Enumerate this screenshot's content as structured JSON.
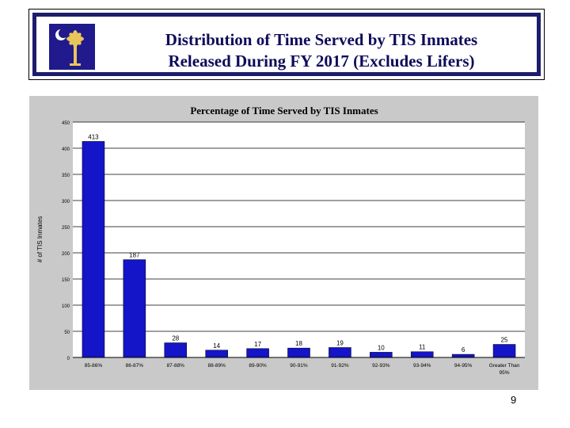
{
  "header": {
    "title_line1": "Distribution of Time Served by TIS Inmates",
    "title_line2": "Released During FY 2017 (Excludes Lifers)"
  },
  "page_number": "9",
  "colors": {
    "bar": "#1414c8",
    "title": "#0e0b59",
    "flag": "#201a8c",
    "plot_bg": "#c9c9c9"
  },
  "chart_data": {
    "type": "bar",
    "title": "Percentage of Time Served by TIS Inmates",
    "xlabel": "",
    "ylabel": "# of TIS Inmates",
    "categories": [
      "85-86%",
      "86-87%",
      "87-88%",
      "88-89%",
      "89-90%",
      "90-91%",
      "91-92%",
      "92-93%",
      "93-94%",
      "94-95%",
      "Greater Than 95%"
    ],
    "values": [
      413,
      187,
      28,
      14,
      17,
      18,
      19,
      10,
      11,
      6,
      25
    ],
    "ylim": [
      0,
      450
    ],
    "yticks": [
      0,
      50,
      100,
      150,
      200,
      250,
      300,
      350,
      400,
      450
    ],
    "grid": true,
    "legend": "none"
  }
}
